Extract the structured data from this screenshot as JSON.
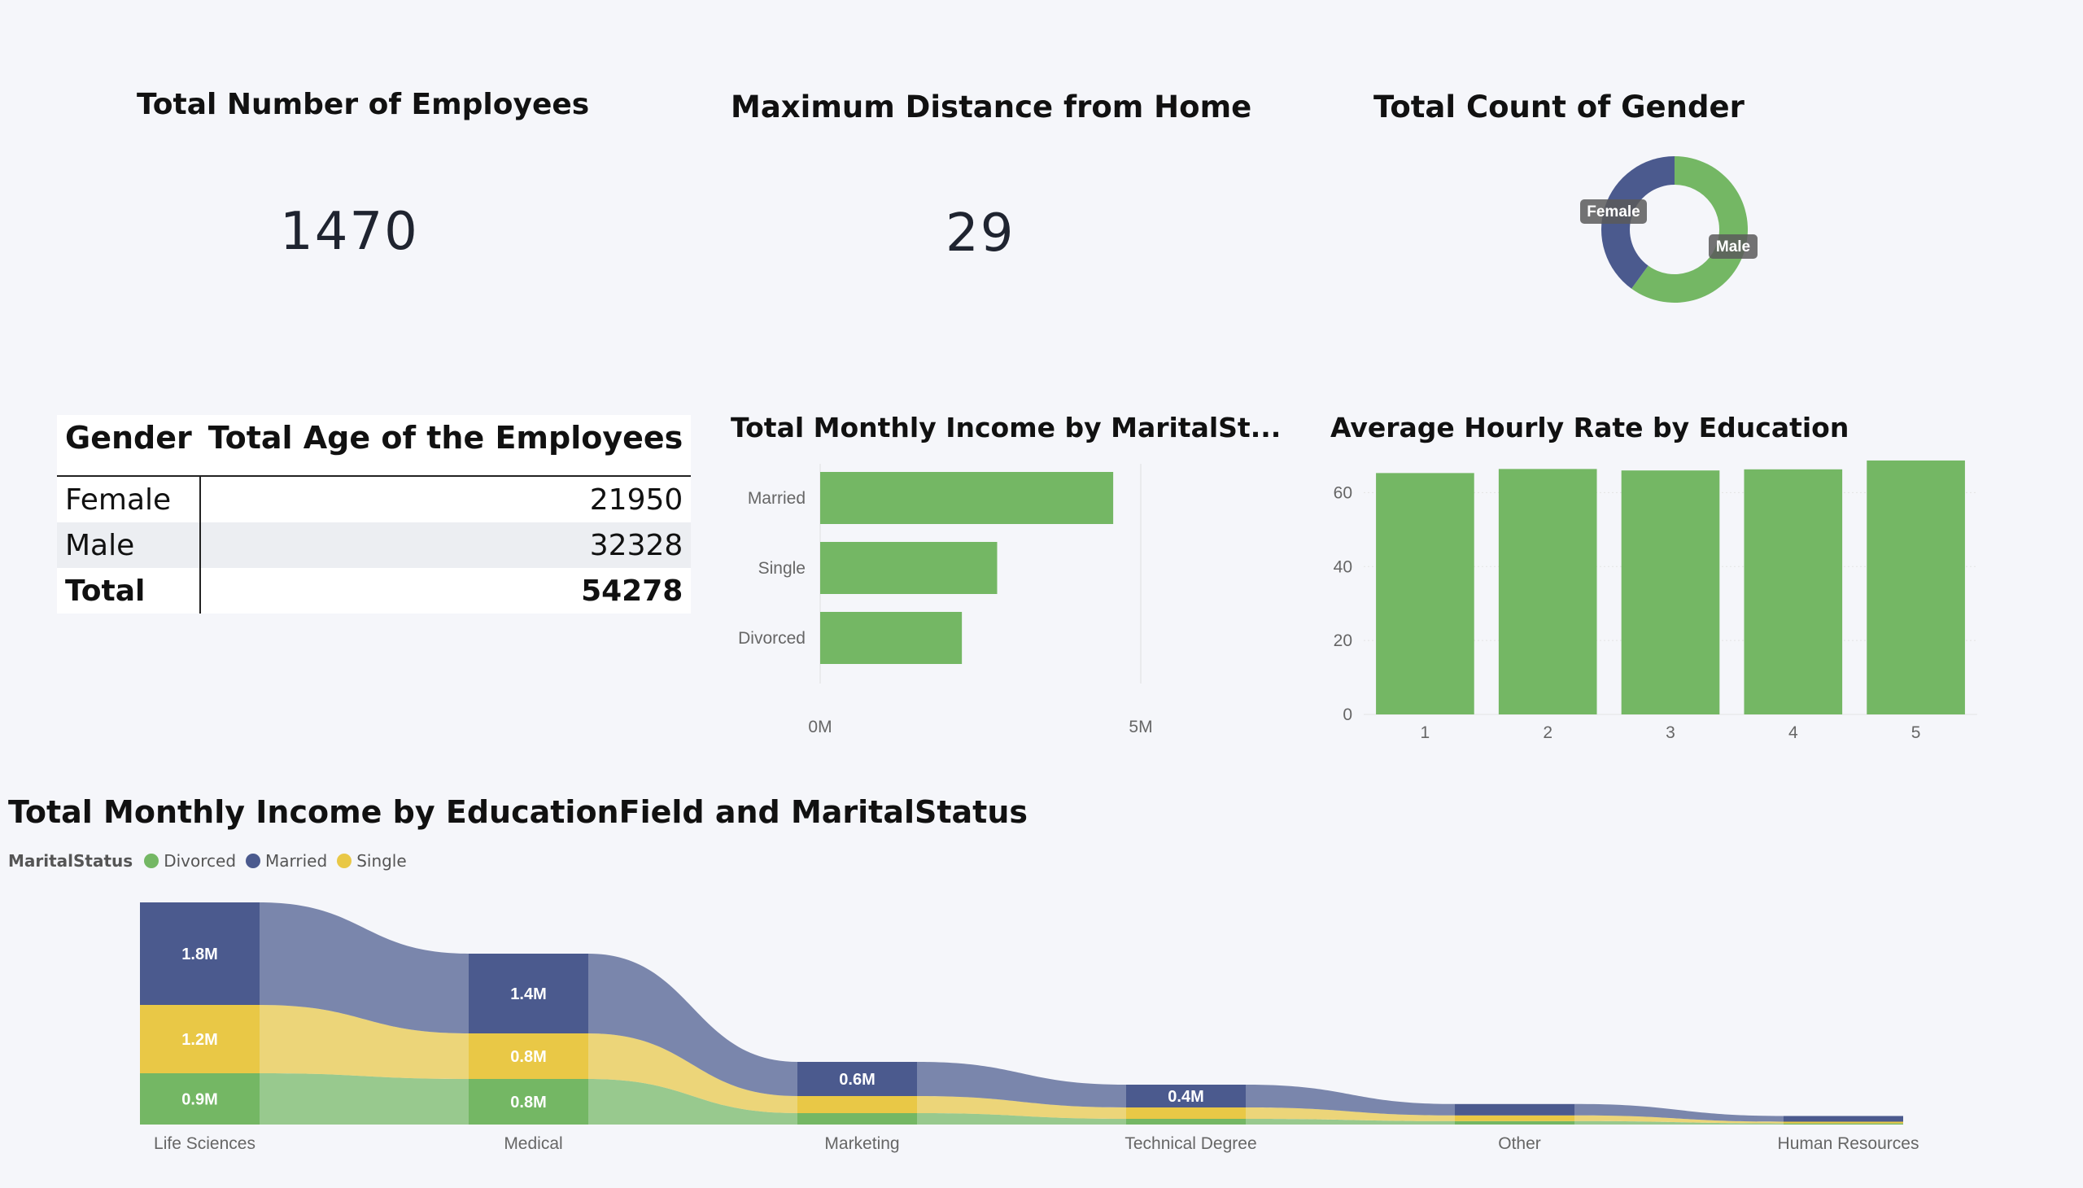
{
  "colors": {
    "divorced": "#74b764",
    "married": "#4b5a8e",
    "single": "#e9c846",
    "bar": "#74b764",
    "background": "#f5f6fa"
  },
  "kpi_employees": {
    "title": "Total Number of Employees",
    "value": "1470"
  },
  "kpi_distance": {
    "title": "Maximum Distance from Home",
    "value": "29"
  },
  "gender_table": {
    "headers": [
      "Gender",
      "Total Age of the Employees"
    ],
    "rows": [
      {
        "label": "Female",
        "value": "21950"
      },
      {
        "label": "Male",
        "value": "32328"
      }
    ],
    "total": {
      "label": "Total",
      "value": "54278"
    }
  },
  "chart_data": [
    {
      "type": "pie",
      "variant": "donut",
      "title": "Total Count of Gender",
      "categories": [
        "Female",
        "Male"
      ],
      "values": [
        588,
        882
      ],
      "colors": [
        "#4b5a8e",
        "#74b764"
      ]
    },
    {
      "type": "bar",
      "orientation": "horizontal",
      "title": "Total Monthly Income by MaritalSt...",
      "categories": [
        "Married",
        "Single",
        "Divorced"
      ],
      "values": [
        4570000,
        2760000,
        2210000
      ],
      "xlim": [
        0,
        5000000
      ],
      "xticks": [
        "0M",
        "5M"
      ],
      "grid": true
    },
    {
      "type": "bar",
      "title": "Average Hourly Rate by Education",
      "categories": [
        "1",
        "2",
        "3",
        "4",
        "5"
      ],
      "values": [
        65.3,
        66.4,
        66,
        66.3,
        68.7
      ],
      "ylim": [
        0,
        70
      ],
      "yticks": [
        0,
        20,
        40,
        60
      ],
      "grid": true
    },
    {
      "type": "area",
      "variant": "ribbon",
      "title": "Total Monthly Income by EducationField and MaritalStatus",
      "legend_title": "MaritalStatus",
      "legend_position": "top-left",
      "categories": [
        "Life Sciences",
        "Medical",
        "Marketing",
        "Technical Degree",
        "Other",
        "Human Resources"
      ],
      "series": [
        {
          "name": "Divorced",
          "values": [
            0.9,
            0.8,
            0.2,
            0.1,
            0.06,
            0.02
          ],
          "labels": [
            "0.9M",
            "0.8M",
            "",
            "",
            "",
            ""
          ]
        },
        {
          "name": "Single",
          "values": [
            1.2,
            0.8,
            0.3,
            0.2,
            0.1,
            0.03
          ],
          "labels": [
            "1.2M",
            "0.8M",
            "",
            "",
            "",
            ""
          ]
        },
        {
          "name": "Married",
          "values": [
            1.8,
            1.4,
            0.6,
            0.4,
            0.2,
            0.1
          ],
          "labels": [
            "1.8M",
            "1.4M",
            "0.6M",
            "0.4M",
            "",
            ""
          ]
        }
      ]
    }
  ]
}
